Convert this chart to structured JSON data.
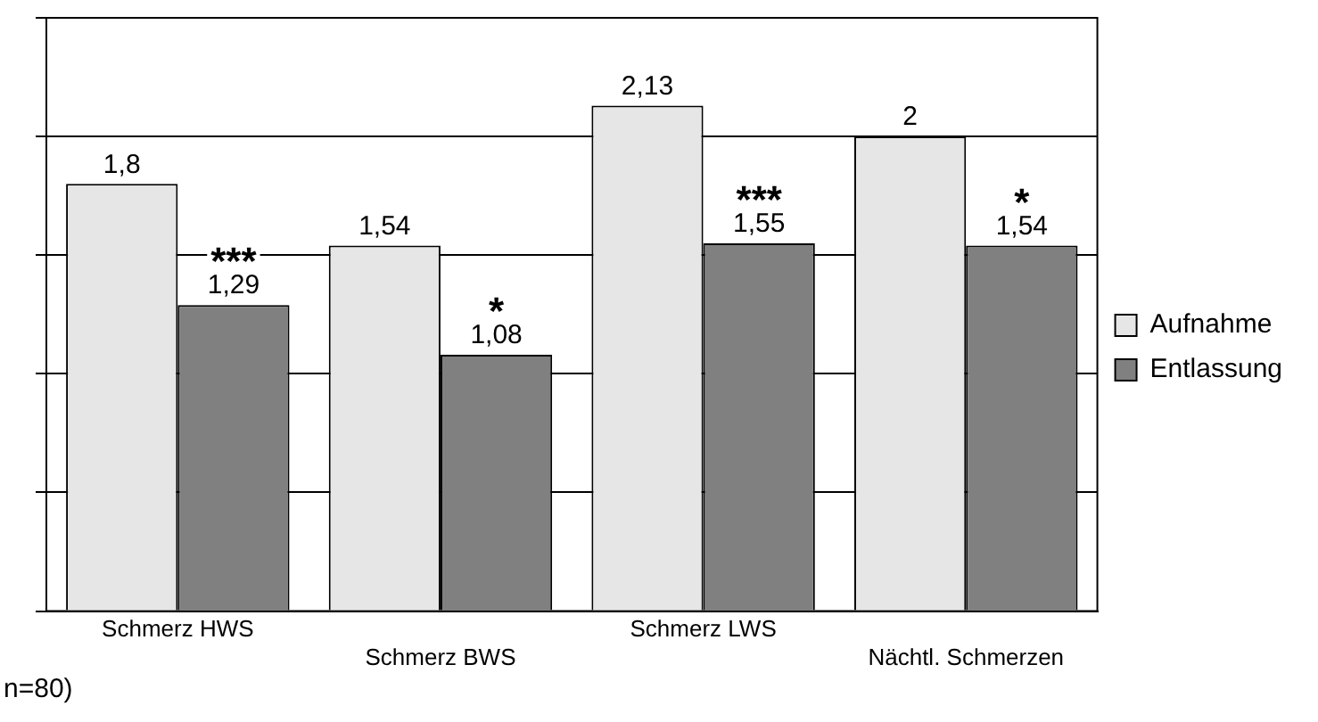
{
  "chart_data": {
    "type": "bar",
    "categories": [
      "Schmerz HWS",
      "Schmerz BWS",
      "Schmerz LWS",
      "Nächtl. Schmerzen"
    ],
    "series": [
      {
        "name": "Aufnahme",
        "color": "#e6e6e6",
        "values": [
          1.8,
          1.54,
          2.13,
          2
        ],
        "value_labels": [
          "1,8",
          "1,54",
          "2,13",
          "2"
        ]
      },
      {
        "name": "Entlassung",
        "color": "#808080",
        "values": [
          1.29,
          1.08,
          1.55,
          1.54
        ],
        "value_labels": [
          "1,29",
          "1,08",
          "1,55",
          "1,54"
        ]
      }
    ],
    "ylim": [
      0,
      2.5
    ],
    "yticks": [
      {
        "value": 0,
        "label": null
      },
      {
        "value": 0.5,
        "label": null
      },
      {
        "value": 1,
        "label": null
      },
      {
        "value": 1.5,
        "label": null
      },
      {
        "value": 2,
        "label": null
      },
      {
        "value": 2.5,
        "label": null
      }
    ],
    "tick_labels": "x",
    "grid": "y",
    "legend": "right",
    "annotations": [
      {
        "text": "***",
        "x": "Schmerz HWS",
        "y": 1.29
      },
      {
        "text": "*",
        "x": "Schmerz BWS",
        "y": 1.08
      },
      {
        "text": "***",
        "x": "Schmerz LWS",
        "y": 1.55
      },
      {
        "text": "*",
        "x": "Nächtl. Schmerzen",
        "y": 1.54
      },
      "n=80)"
    ]
  }
}
